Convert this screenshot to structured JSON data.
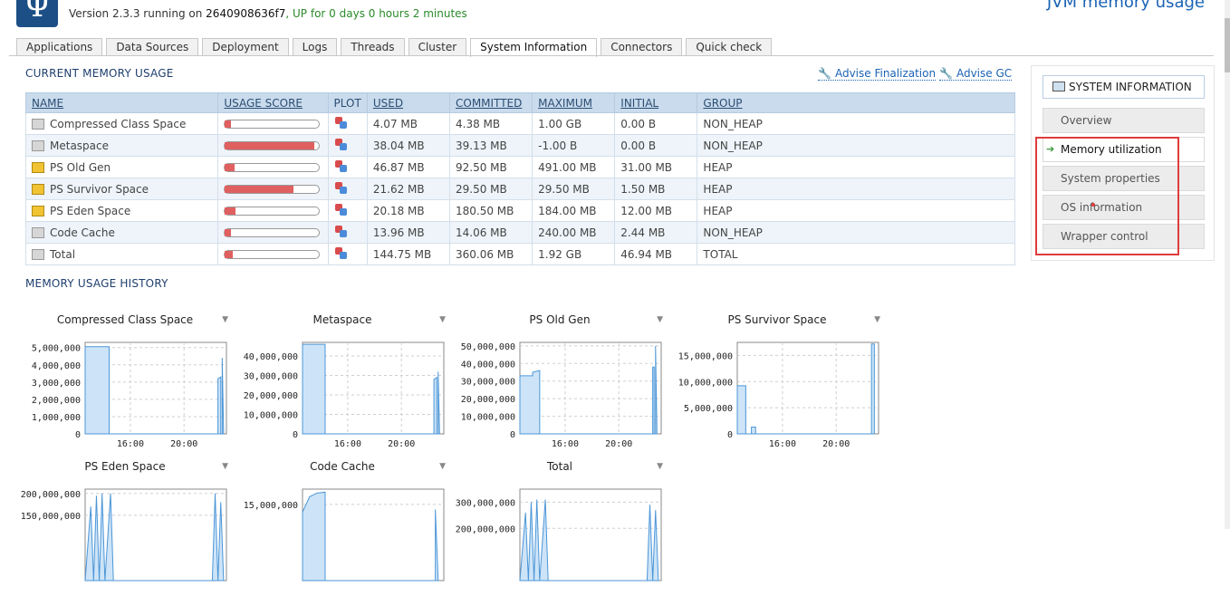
{
  "header": {
    "logo_glyph": "Ψ",
    "version_prefix": "Version 2.3.3 running on ",
    "host": "2640908636f7",
    "uptime": ", UP for 0 days 0 hours 2 minutes",
    "page_title": "JVM memory usage"
  },
  "tabs": [
    "Applications",
    "Data Sources",
    "Deployment",
    "Logs",
    "Threads",
    "Cluster",
    "System Information",
    "Connectors",
    "Quick check"
  ],
  "active_tab": "System Information",
  "current_memory": {
    "title": "CURRENT MEMORY USAGE",
    "advise_finalization": "Advise Finalization",
    "advise_gc": "Advise GC",
    "columns": [
      "NAME",
      "USAGE SCORE",
      "PLOT",
      "USED",
      "COMMITTED",
      "MAXIMUM",
      "INITIAL",
      "GROUP"
    ],
    "rows": [
      {
        "name": "Compressed Class Space",
        "icon": "grey",
        "score": 0.0,
        "used": "4.07 MB",
        "committed": "4.38 MB",
        "maximum": "1.00 GB",
        "initial": "0.00 B",
        "group": "NON_HEAP"
      },
      {
        "name": "Metaspace",
        "icon": "grey",
        "score": 0.95,
        "used": "38.04 MB",
        "committed": "39.13 MB",
        "maximum": "-1.00 B",
        "initial": "0.00 B",
        "group": "NON_HEAP"
      },
      {
        "name": "PS Old Gen",
        "icon": "gold",
        "score": 0.1,
        "used": "46.87 MB",
        "committed": "92.50 MB",
        "maximum": "491.00 MB",
        "initial": "31.00 MB",
        "group": "HEAP"
      },
      {
        "name": "PS Survivor Space",
        "icon": "gold",
        "score": 0.73,
        "used": "21.62 MB",
        "committed": "29.50 MB",
        "maximum": "29.50 MB",
        "initial": "1.50 MB",
        "group": "HEAP"
      },
      {
        "name": "PS Eden Space",
        "icon": "gold",
        "score": 0.11,
        "used": "20.18 MB",
        "committed": "180.50 MB",
        "maximum": "184.00 MB",
        "initial": "12.00 MB",
        "group": "HEAP"
      },
      {
        "name": "Code Cache",
        "icon": "grey",
        "score": 0.06,
        "used": "13.96 MB",
        "committed": "14.06 MB",
        "maximum": "240.00 MB",
        "initial": "2.44 MB",
        "group": "NON_HEAP"
      },
      {
        "name": "Total",
        "icon": "grey",
        "score": 0.08,
        "used": "144.75 MB",
        "committed": "360.06 MB",
        "maximum": "1.92 GB",
        "initial": "46.94 MB",
        "group": "TOTAL"
      }
    ]
  },
  "history": {
    "title": "MEMORY USAGE HISTORY",
    "menu_glyph": "▼"
  },
  "chart_data": [
    {
      "type": "area",
      "title": "Compressed Class Space",
      "yticks": [
        "5,000,000",
        "4,000,000",
        "3,000,000",
        "2,000,000",
        "1,000,000",
        "0"
      ],
      "xticks": [
        "16:00",
        "20:00"
      ],
      "ylim": [
        0,
        5300000
      ],
      "series": [
        {
          "values": [
            [
              0.0,
              5050000
            ],
            [
              0.17,
              5050000
            ],
            [
              0.17,
              0
            ],
            [
              0.94,
              0
            ],
            [
              0.94,
              3200000
            ],
            [
              0.96,
              3300000
            ],
            [
              0.96,
              0
            ],
            [
              0.97,
              0
            ],
            [
              0.97,
              4400000
            ],
            [
              0.98,
              0
            ]
          ]
        }
      ]
    },
    {
      "type": "area",
      "title": "Metaspace",
      "yticks": [
        "40,000,000",
        "30,000,000",
        "20,000,000",
        "10,000,000",
        "0"
      ],
      "xticks": [
        "16:00",
        "20:00"
      ],
      "ylim": [
        0,
        47000000
      ],
      "series": [
        {
          "values": [
            [
              0.0,
              46000000
            ],
            [
              0.16,
              46000000
            ],
            [
              0.16,
              0
            ],
            [
              0.93,
              0
            ],
            [
              0.93,
              28000000
            ],
            [
              0.95,
              29000000
            ],
            [
              0.95,
              0
            ],
            [
              0.96,
              0
            ],
            [
              0.96,
              32000000
            ],
            [
              0.97,
              0
            ]
          ]
        }
      ]
    },
    {
      "type": "area",
      "title": "PS Old Gen",
      "yticks": [
        "50,000,000",
        "40,000,000",
        "30,000,000",
        "20,000,000",
        "10,000,000",
        "0"
      ],
      "xticks": [
        "16:00",
        "20:00"
      ],
      "ylim": [
        0,
        52000000
      ],
      "series": [
        {
          "values": [
            [
              0.0,
              33000000
            ],
            [
              0.09,
              33000000
            ],
            [
              0.09,
              35000000
            ],
            [
              0.14,
              36000000
            ],
            [
              0.14,
              0
            ],
            [
              0.94,
              0
            ],
            [
              0.94,
              38000000
            ],
            [
              0.95,
              38000000
            ],
            [
              0.95,
              0
            ],
            [
              0.96,
              0
            ],
            [
              0.96,
              50000000
            ],
            [
              0.97,
              0
            ]
          ]
        }
      ]
    },
    {
      "type": "area",
      "title": "PS Survivor Space",
      "yticks": [
        "15,000,000",
        "10,000,000",
        "5,000,000",
        "0"
      ],
      "xticks": [
        "16:00",
        "20:00"
      ],
      "ylim": [
        0,
        17500000
      ],
      "series": [
        {
          "values": [
            [
              0.0,
              9200000
            ],
            [
              0.06,
              9200000
            ],
            [
              0.06,
              0
            ],
            [
              0.1,
              0
            ],
            [
              0.1,
              1300000
            ],
            [
              0.13,
              1300000
            ],
            [
              0.13,
              0
            ],
            [
              0.95,
              0
            ],
            [
              0.95,
              17200000
            ],
            [
              0.97,
              17200000
            ],
            [
              0.97,
              0
            ]
          ]
        }
      ]
    },
    {
      "type": "area",
      "title": "PS Eden Space",
      "yticks": [
        "200,000,000",
        "150,000,000"
      ],
      "xticks": [],
      "ylim": [
        0,
        210000000
      ],
      "series": [
        {
          "values": [
            [
              0.0,
              0
            ],
            [
              0.04,
              170000000
            ],
            [
              0.06,
              0
            ],
            [
              0.08,
              195000000
            ],
            [
              0.1,
              0
            ],
            [
              0.12,
              200000000
            ],
            [
              0.14,
              0
            ],
            [
              0.18,
              200000000
            ],
            [
              0.2,
              0
            ],
            [
              0.9,
              0
            ],
            [
              0.92,
              200000000
            ],
            [
              0.94,
              0
            ],
            [
              0.96,
              180000000
            ],
            [
              0.98,
              0
            ]
          ]
        }
      ]
    },
    {
      "type": "area",
      "title": "Code Cache",
      "yticks": [
        "15,000,000"
      ],
      "xticks": [],
      "ylim": [
        0,
        18000000
      ],
      "series": [
        {
          "values": [
            [
              0.0,
              13500000
            ],
            [
              0.05,
              16500000
            ],
            [
              0.1,
              17200000
            ],
            [
              0.16,
              17400000
            ],
            [
              0.16,
              0
            ],
            [
              0.94,
              0
            ],
            [
              0.94,
              14000000
            ],
            [
              0.96,
              0
            ]
          ]
        }
      ]
    },
    {
      "type": "area",
      "title": "Total",
      "yticks": [
        "300,000,000",
        "200,000,000"
      ],
      "xticks": [],
      "ylim": [
        0,
        350000000
      ],
      "series": [
        {
          "values": [
            [
              0.0,
              0
            ],
            [
              0.04,
              260000000
            ],
            [
              0.06,
              0
            ],
            [
              0.08,
              300000000
            ],
            [
              0.1,
              0
            ],
            [
              0.12,
              310000000
            ],
            [
              0.14,
              0
            ],
            [
              0.18,
              310000000
            ],
            [
              0.2,
              0
            ],
            [
              0.9,
              0
            ],
            [
              0.92,
              290000000
            ],
            [
              0.94,
              0
            ],
            [
              0.96,
              270000000
            ],
            [
              0.98,
              0
            ]
          ]
        }
      ]
    }
  ],
  "sidebar": {
    "header": "SYSTEM INFORMATION",
    "items": [
      {
        "label": "Overview",
        "active": false
      },
      {
        "label": "Memory utilization",
        "active": true
      },
      {
        "label": "System properties",
        "active": false
      },
      {
        "label": "OS information",
        "active": false
      },
      {
        "label": "Wrapper control",
        "active": false
      }
    ]
  },
  "colors": {
    "accent": "#1b63b5",
    "area_fill": "#cde4f8",
    "area_line": "#4c96d7",
    "usage_bar": "#e06060",
    "highlight": "#e03c3c"
  }
}
